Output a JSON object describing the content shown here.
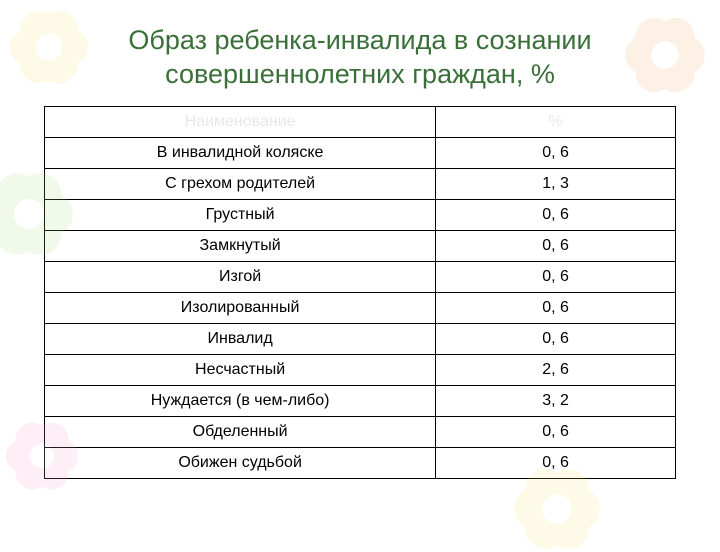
{
  "title_line1": "Образ ребенка-инвалида в сознании",
  "title_line2": "совершеннолетних граждан, %",
  "title_color": "#3a6f3a",
  "table": {
    "header_color": "#e8e8e8",
    "border_color": "#000000",
    "columns": [
      {
        "label": "Наименование"
      },
      {
        "label": "%"
      }
    ],
    "rows": [
      {
        "name": "В инвалидной коляске",
        "value": "0, 6"
      },
      {
        "name": "С грехом родителей",
        "value": "1, 3"
      },
      {
        "name": "Грустный",
        "value": "0, 6"
      },
      {
        "name": "Замкнутый",
        "value": "0, 6"
      },
      {
        "name": "Изгой",
        "value": "0, 6"
      },
      {
        "name": "Изолированный",
        "value": "0, 6"
      },
      {
        "name": "Инвалид",
        "value": "0, 6"
      },
      {
        "name": "Несчастный",
        "value": "2, 6"
      },
      {
        "name": "Нуждается (в чем-либо)",
        "value": "3, 2"
      },
      {
        "name": "Обделенный",
        "value": "0, 6"
      },
      {
        "name": "Обижен судьбой",
        "value": "0, 6"
      }
    ]
  },
  "flowers": [
    {
      "color": "#f7e96b",
      "size": 78
    },
    {
      "color": "#a7e07a",
      "size": 88
    },
    {
      "color": "#f29bc1",
      "size": 72
    },
    {
      "color": "#f2a65a",
      "size": 80
    },
    {
      "color": "#f7e96b",
      "size": 86
    }
  ]
}
